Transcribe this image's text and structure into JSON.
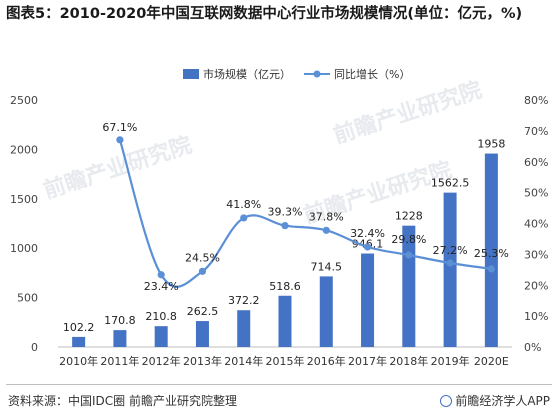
{
  "title": "图表5：2010-2020年中国互联网数据中心行业市场规模情况(单位：亿元，%)",
  "footer": {
    "source": "资料来源：中国IDC圈 前瞻产业研究院整理",
    "brand": "前瞻经济学人APP"
  },
  "watermark": "前瞻产业研究院",
  "colors": {
    "bar": "#4472c4",
    "line": "#5b8fd6"
  },
  "chart_data": {
    "type": "bar+line",
    "categories": [
      "2010年",
      "2011年",
      "2012年",
      "2013年",
      "2014年",
      "2015年",
      "2016年",
      "2017年",
      "2018年",
      "2019年",
      "2020E"
    ],
    "series": [
      {
        "name": "市场规模（亿元）",
        "type": "bar",
        "axis": "left",
        "values": [
          102.2,
          170.8,
          210.8,
          262.5,
          372.2,
          518.6,
          714.5,
          946.1,
          1228,
          1562.5,
          1958
        ],
        "labels": [
          "102.2",
          "170.8",
          "210.8",
          "262.5",
          "372.2",
          "518.6",
          "714.5",
          "946.1",
          "1228",
          "1562.5",
          "1958"
        ]
      },
      {
        "name": "同比增长（%）",
        "type": "line",
        "axis": "right",
        "values": [
          null,
          67.1,
          23.4,
          24.5,
          41.8,
          39.3,
          37.8,
          32.4,
          29.8,
          27.2,
          25.3
        ],
        "labels": [
          "",
          "67.1%",
          "23.4%",
          "24.5%",
          "41.8%",
          "39.3%",
          "37.8%",
          "32.4%",
          "29.8%",
          "27.2%",
          "25.3%"
        ]
      }
    ],
    "y_left": {
      "min": 0,
      "max": 2500,
      "ticks": [
        0,
        500,
        1000,
        1500,
        2000,
        2500
      ]
    },
    "y_right": {
      "min": 0,
      "max": 80,
      "ticks": [
        "0%",
        "10%",
        "20%",
        "30%",
        "40%",
        "50%",
        "60%",
        "70%",
        "80%"
      ]
    },
    "legend_position": "top-center",
    "grid": false
  }
}
